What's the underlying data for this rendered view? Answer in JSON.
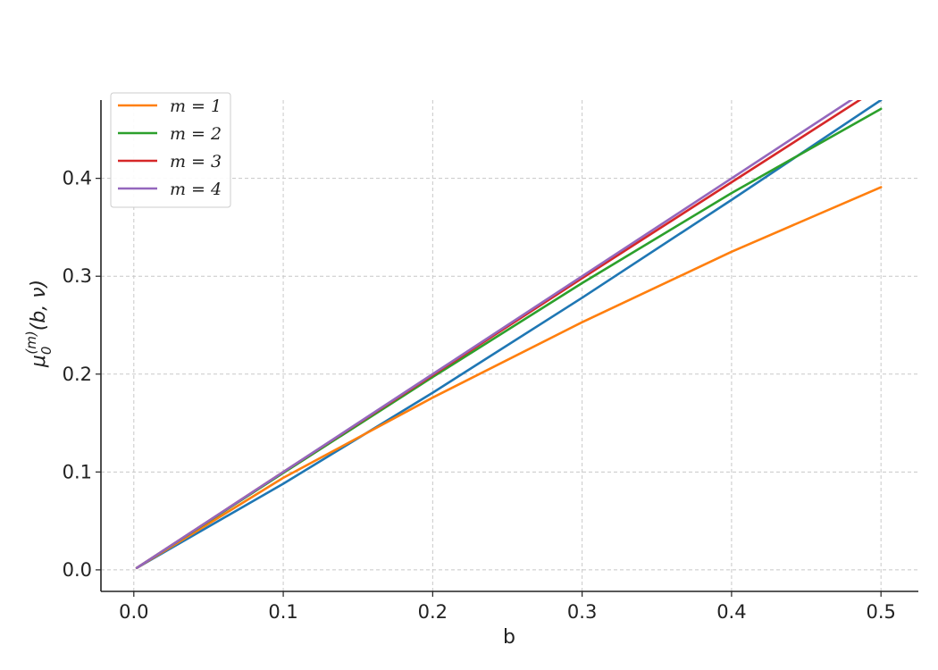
{
  "chart_data": {
    "type": "line",
    "title": "",
    "xlabel": "b",
    "ylabel": {
      "base": "μ",
      "subscript": "0",
      "superscript": "(m)",
      "args": "(b, ν)"
    },
    "xlim": [
      -0.022,
      0.525
    ],
    "ylim": [
      -0.022,
      0.48
    ],
    "xticks": [
      0.0,
      0.1,
      0.2,
      0.3,
      0.4,
      0.5
    ],
    "xtick_labels": [
      "0.0",
      "0.1",
      "0.2",
      "0.3",
      "0.4",
      "0.5"
    ],
    "yticks": [
      0.0,
      0.1,
      0.2,
      0.3,
      0.4
    ],
    "ytick_labels": [
      "0.0",
      "0.1",
      "0.2",
      "0.3",
      "0.4"
    ],
    "grid": true,
    "legend_position": "top-left",
    "series": [
      {
        "color": "#1f77b4",
        "x": [
          0.002,
          0.1,
          0.2,
          0.3,
          0.4,
          0.5
        ],
        "y": [
          0.002,
          0.088,
          0.181,
          0.278,
          0.378,
          0.48
        ]
      },
      {
        "name": "m = 1",
        "legend_label": "m = 1",
        "color": "#ff7f0e",
        "x": [
          0.002,
          0.1,
          0.2,
          0.3,
          0.4,
          0.5
        ],
        "y": [
          0.002,
          0.094,
          0.176,
          0.253,
          0.325,
          0.391
        ]
      },
      {
        "name": "m = 2",
        "legend_label": "m = 2",
        "color": "#2ca02c",
        "x": [
          0.002,
          0.1,
          0.2,
          0.3,
          0.4,
          0.5
        ],
        "y": [
          0.002,
          0.099,
          0.197,
          0.293,
          0.385,
          0.471
        ]
      },
      {
        "name": "m = 3",
        "legend_label": "m = 3",
        "color": "#d62728",
        "x": [
          0.002,
          0.1,
          0.2,
          0.3,
          0.4,
          0.5
        ],
        "y": [
          0.002,
          0.1,
          0.199,
          0.298,
          0.396,
          0.494
        ]
      },
      {
        "name": "m = 4",
        "legend_label": "m = 4",
        "color": "#9467bd",
        "x": [
          0.002,
          0.1,
          0.2,
          0.3,
          0.4,
          0.5
        ],
        "y": [
          0.002,
          0.1,
          0.2,
          0.3,
          0.4,
          0.5
        ]
      }
    ]
  }
}
